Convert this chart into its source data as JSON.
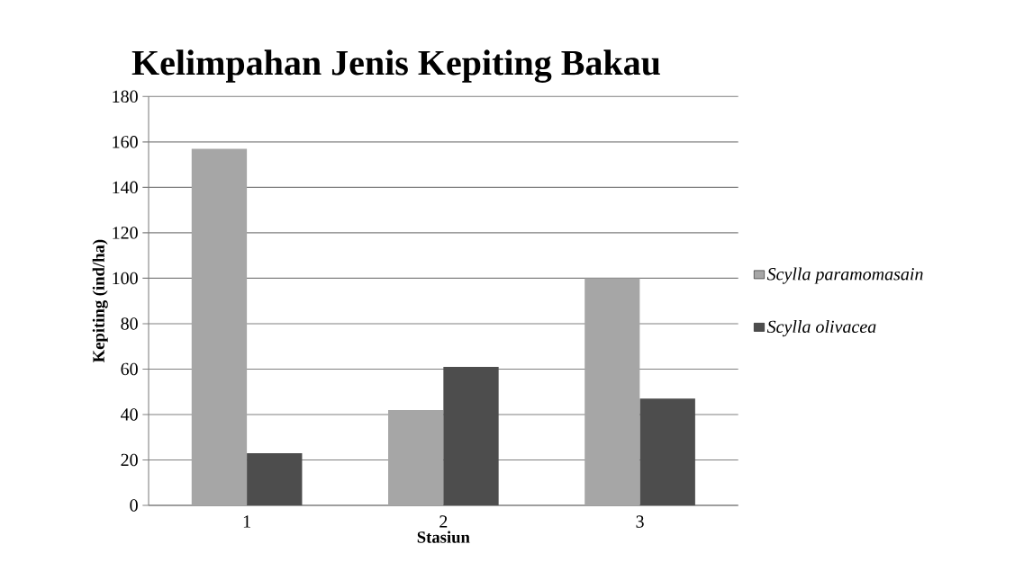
{
  "chart_data": {
    "type": "bar",
    "title": "Kelimpahan Jenis Kepiting Bakau",
    "xlabel": "Stasiun",
    "ylabel": "Kepiting (ind/ha)",
    "categories": [
      "1",
      "2",
      "3"
    ],
    "series": [
      {
        "name": "Scylla paramomasain",
        "color": "#a6a6a6",
        "values": [
          157,
          42,
          100
        ]
      },
      {
        "name": "Scylla olivacea",
        "color": "#4d4d4d",
        "values": [
          23,
          61,
          47
        ]
      }
    ],
    "ylim": [
      0,
      180
    ],
    "yticks": [
      0,
      20,
      40,
      60,
      80,
      100,
      120,
      140,
      160,
      180
    ],
    "grid": "y",
    "legend": "right"
  }
}
